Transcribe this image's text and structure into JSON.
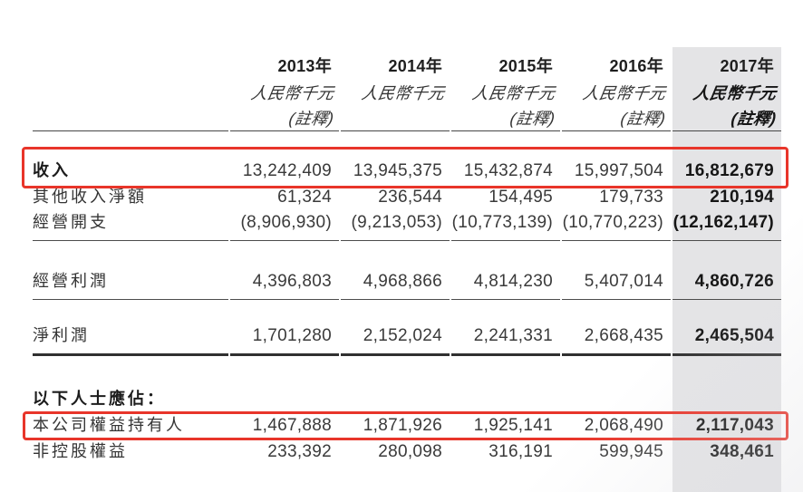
{
  "colors": {
    "annotation_red": "#e8352a",
    "column_highlight_gray": "#e4e4e6",
    "text": "#2e2e2e"
  },
  "table": {
    "columns": [
      {
        "year": "2013年",
        "unit": "人民幣千元",
        "note": "(註釋)"
      },
      {
        "year": "2014年",
        "unit": "人民幣千元",
        "note": ""
      },
      {
        "year": "2015年",
        "unit": "人民幣千元",
        "note": "(註釋)"
      },
      {
        "year": "2016年",
        "unit": "人民幣千元",
        "note": "(註釋)"
      },
      {
        "year": "2017年",
        "unit": "人民幣千元",
        "note": "(註釋)"
      }
    ],
    "rows": [
      {
        "label": "收入",
        "values": [
          "13,242,409",
          "13,945,375",
          "15,432,874",
          "15,997,504",
          "16,812,679"
        ]
      },
      {
        "label": "其他收入淨額",
        "values": [
          "61,324",
          "236,544",
          "154,495",
          "179,733",
          "210,194"
        ]
      },
      {
        "label": "經營開支",
        "values": [
          "(8,906,930)",
          "(9,213,053)",
          "(10,773,139)",
          "(10,770,223)",
          "(12,162,147)"
        ]
      },
      {
        "label": "經營利潤",
        "values": [
          "4,396,803",
          "4,968,866",
          "4,814,230",
          "5,407,014",
          "4,860,726"
        ]
      },
      {
        "label": "淨利潤",
        "values": [
          "1,701,280",
          "2,152,024",
          "2,241,331",
          "2,668,435",
          "2,465,504"
        ]
      },
      {
        "label": "以下人士應佔："
      },
      {
        "label": "本公司權益持有人",
        "values": [
          "1,467,888",
          "1,871,926",
          "1,925,141",
          "2,068,490",
          "2,117,043"
        ]
      },
      {
        "label": "非控股權益",
        "values": [
          "233,392",
          "280,098",
          "316,191",
          "599,945",
          "348,461"
        ]
      }
    ]
  },
  "annotations": [
    {
      "type": "red-highlight-box",
      "target_row": "收入"
    },
    {
      "type": "red-highlight-box",
      "target_row": "本公司權益持有人"
    },
    {
      "type": "gray-column-highlight",
      "target_column": "2017年"
    }
  ]
}
